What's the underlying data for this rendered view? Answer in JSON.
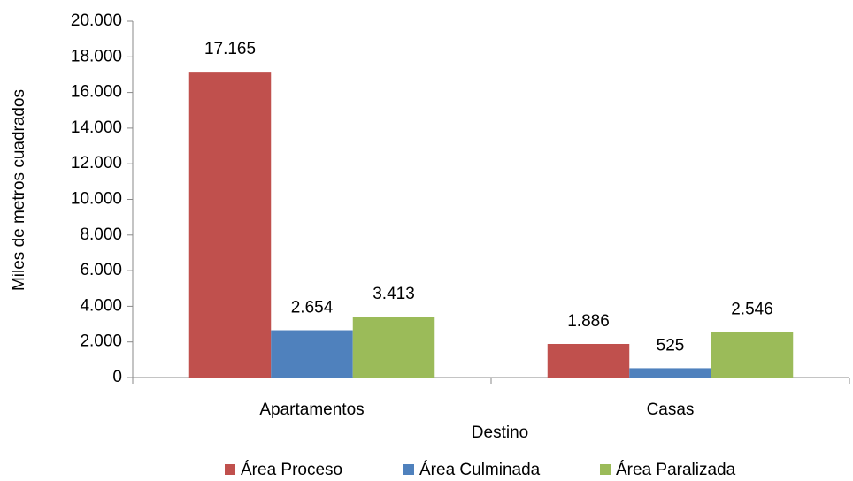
{
  "chart_data": {
    "type": "bar",
    "x_label": "Destino",
    "y_label": "Miles de metros cuadrados",
    "categories": [
      "Apartamentos",
      "Casas"
    ],
    "series": [
      {
        "name": "Área Proceso",
        "color": "#c0504d",
        "values": [
          17165,
          1886
        ],
        "value_labels": [
          "17.165",
          "1.886"
        ]
      },
      {
        "name": "Área Culminada",
        "color": "#4f81bd",
        "values": [
          2654,
          525
        ],
        "value_labels": [
          "2.654",
          "525"
        ]
      },
      {
        "name": "Área Paralizada",
        "color": "#9bbb59",
        "values": [
          3413,
          2546
        ],
        "value_labels": [
          "3.413",
          "2.546"
        ]
      }
    ],
    "ylim": [
      0,
      20000
    ],
    "yticks": [
      0,
      {
        "value": 2000,
        "label": "2.000"
      },
      {
        "value": 4000,
        "label": "4.000"
      },
      {
        "value": 6000,
        "label": "6.000"
      },
      {
        "value": 8000,
        "label": "8.000"
      },
      {
        "value": 10000,
        "label": "10.000"
      },
      {
        "value": 12000,
        "label": "12.000"
      },
      {
        "value": 14000,
        "label": "14.000"
      },
      {
        "value": 16000,
        "label": "16.000"
      },
      {
        "value": 18000,
        "label": "18.000"
      },
      {
        "value": 20000,
        "label": "20.000"
      }
    ],
    "grid": false,
    "legend": "bottom"
  }
}
